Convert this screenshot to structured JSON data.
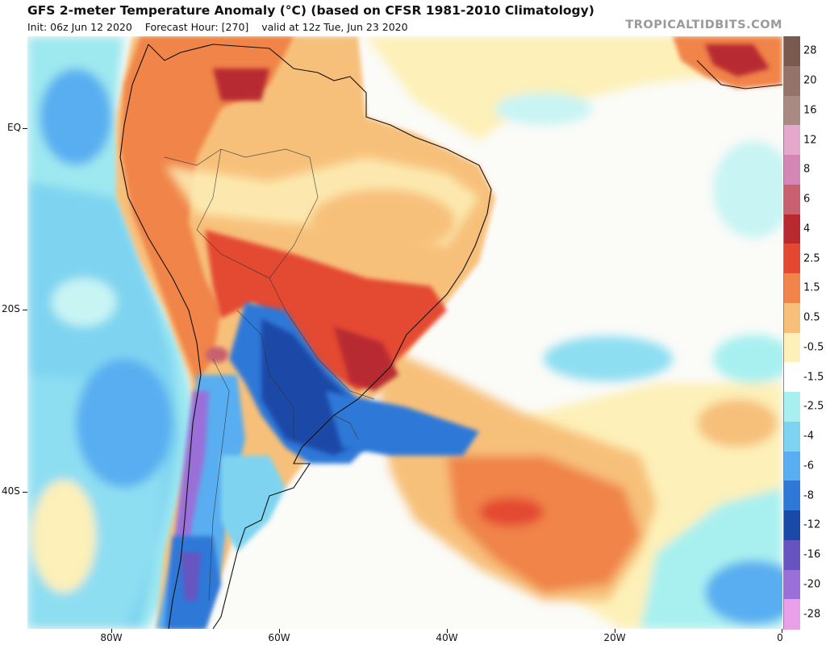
{
  "header": {
    "title": "GFS 2-meter Temperature Anomaly (°C) (based on CFSR 1981-2010 Climatology)",
    "init": "Init: 06z Jun 12 2020",
    "forecast_hour": "Forecast Hour: [270]",
    "valid": "valid at 12z Tue, Jun 23 2020",
    "brand": "TROPICALTIDBITS.COM"
  },
  "axes": {
    "lat_labels": [
      "EQ",
      "20S",
      "40S"
    ],
    "lon_labels": [
      "80W",
      "60W",
      "40W",
      "20W",
      "0"
    ]
  },
  "legend": {
    "labels": [
      "28",
      "20",
      "16",
      "12",
      "8",
      "6",
      "4",
      "2.5",
      "1.5",
      "0.5",
      "-0.5",
      "-1.5",
      "-2.5",
      "-4",
      "-6",
      "-8",
      "-12",
      "-16",
      "-20",
      "-28"
    ],
    "colors": [
      "#7a5a4e",
      "#93736a",
      "#a98a82",
      "#e4a8cc",
      "#d486b4",
      "#c86070",
      "#b82a30",
      "#e44830",
      "#f0844a",
      "#f7c07a",
      "#fdf0b8",
      "#ffffff",
      "#a8f0f0",
      "#7ed4f0",
      "#58aef0",
      "#2f78d8",
      "#1a4aa8",
      "#6854c0",
      "#9a70d8",
      "#e8a0e8"
    ]
  },
  "colors": {
    "warm_strong": "#e44830",
    "warm": "#f0844a",
    "warm_light": "#f7c07a",
    "neutral_warm": "#fdf0b8",
    "cool_light": "#a8f0f0",
    "cool": "#58aef0",
    "cold": "#2f78d8",
    "cold_strong": "#1a4aa8",
    "very_cold": "#9a70d8"
  }
}
